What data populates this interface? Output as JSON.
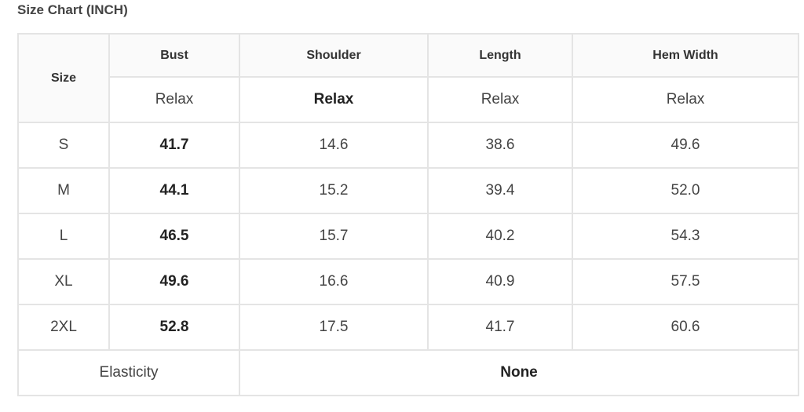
{
  "title": "Size Chart (INCH)",
  "table": {
    "size_header": "Size",
    "columns": [
      "Bust",
      "Shoulder",
      "Length",
      "Hem Width"
    ],
    "fit": [
      "Relax",
      "Relax",
      "Relax",
      "Relax"
    ],
    "rows": [
      {
        "size": "S",
        "values": [
          "41.7",
          "14.6",
          "38.6",
          "49.6"
        ]
      },
      {
        "size": "M",
        "values": [
          "44.1",
          "15.2",
          "39.4",
          "52.0"
        ]
      },
      {
        "size": "L",
        "values": [
          "46.5",
          "15.7",
          "40.2",
          "54.3"
        ]
      },
      {
        "size": "XL",
        "values": [
          "49.6",
          "16.6",
          "40.9",
          "57.5"
        ]
      },
      {
        "size": "2XL",
        "values": [
          "52.8",
          "17.5",
          "41.7",
          "60.6"
        ]
      }
    ],
    "elasticity_label": "Elasticity",
    "elasticity_value": "None"
  }
}
